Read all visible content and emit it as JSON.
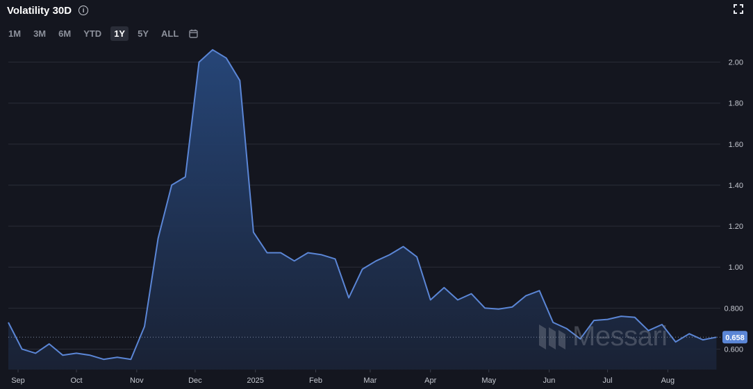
{
  "header": {
    "title": "Volatility 30D",
    "info_icon": "info-icon",
    "expand_icon": "fullscreen-icon"
  },
  "ranges": [
    {
      "label": "1M",
      "active": false
    },
    {
      "label": "3M",
      "active": false
    },
    {
      "label": "6M",
      "active": false
    },
    {
      "label": "YTD",
      "active": false
    },
    {
      "label": "1Y",
      "active": true
    },
    {
      "label": "5Y",
      "active": false
    },
    {
      "label": "ALL",
      "active": false
    }
  ],
  "calendar_icon": "calendar-icon",
  "watermark": "Messari",
  "colors": {
    "background": "#14161f",
    "line": "#5b86d6",
    "fill_top": "#274a7f",
    "badge": "#5b86d6"
  },
  "chart_data": {
    "type": "area",
    "title": "Volatility 30D",
    "xlabel": "",
    "ylabel": "",
    "ylim": [
      0.5,
      2.1
    ],
    "y_ticks": [
      "2.00",
      "1.80",
      "1.60",
      "1.40",
      "1.20",
      "1.00",
      "0.800",
      "0.600"
    ],
    "y_tick_values": [
      2.0,
      1.8,
      1.6,
      1.4,
      1.2,
      1.0,
      0.8,
      0.6
    ],
    "x_tick_labels": [
      "Sep",
      "Oct",
      "Nov",
      "Dec",
      "2025",
      "Feb",
      "Mar",
      "Apr",
      "May",
      "Jun",
      "Jul",
      "Aug"
    ],
    "x_tick_dates": [
      "2024-09-01",
      "2024-10-01",
      "2024-11-01",
      "2024-12-01",
      "2025-01-01",
      "2025-02-01",
      "2025-03-01",
      "2025-04-01",
      "2025-05-01",
      "2025-06-01",
      "2025-07-01",
      "2025-08-01"
    ],
    "x_range": [
      "2024-08-27",
      "2025-08-28"
    ],
    "grid": true,
    "current_value": 0.658,
    "current_label": "0.658",
    "series": [
      {
        "x": [
          "2024-08-27",
          "2024-09-03",
          "2024-09-10",
          "2024-09-17",
          "2024-09-24",
          "2024-10-01",
          "2024-10-08",
          "2024-10-15",
          "2024-10-22",
          "2024-10-29",
          "2024-11-05",
          "2024-11-12",
          "2024-11-19",
          "2024-11-26",
          "2024-12-03",
          "2024-12-10",
          "2024-12-17",
          "2024-12-24",
          "2024-12-31",
          "2025-01-07",
          "2025-01-14",
          "2025-01-21",
          "2025-01-28",
          "2025-02-04",
          "2025-02-11",
          "2025-02-18",
          "2025-02-25",
          "2025-03-04",
          "2025-03-11",
          "2025-03-18",
          "2025-03-25",
          "2025-04-01",
          "2025-04-08",
          "2025-04-15",
          "2025-04-22",
          "2025-04-29",
          "2025-05-06",
          "2025-05-13",
          "2025-05-20",
          "2025-05-27",
          "2025-06-03",
          "2025-06-10",
          "2025-06-17",
          "2025-06-24",
          "2025-07-01",
          "2025-07-08",
          "2025-07-15",
          "2025-07-22",
          "2025-07-29",
          "2025-08-05",
          "2025-08-12",
          "2025-08-19",
          "2025-08-26"
        ],
        "values": [
          0.73,
          0.6,
          0.58,
          0.625,
          0.57,
          0.58,
          0.57,
          0.55,
          0.56,
          0.55,
          0.71,
          1.14,
          1.4,
          1.44,
          2.0,
          2.06,
          2.02,
          1.91,
          1.17,
          1.07,
          1.07,
          1.03,
          1.07,
          1.06,
          1.04,
          0.85,
          0.99,
          1.03,
          1.06,
          1.1,
          1.05,
          0.84,
          0.9,
          0.84,
          0.87,
          0.8,
          0.795,
          0.805,
          0.86,
          0.885,
          0.73,
          0.7,
          0.65,
          0.74,
          0.745,
          0.76,
          0.755,
          0.69,
          0.72,
          0.635,
          0.675,
          0.645,
          0.658
        ]
      }
    ]
  }
}
